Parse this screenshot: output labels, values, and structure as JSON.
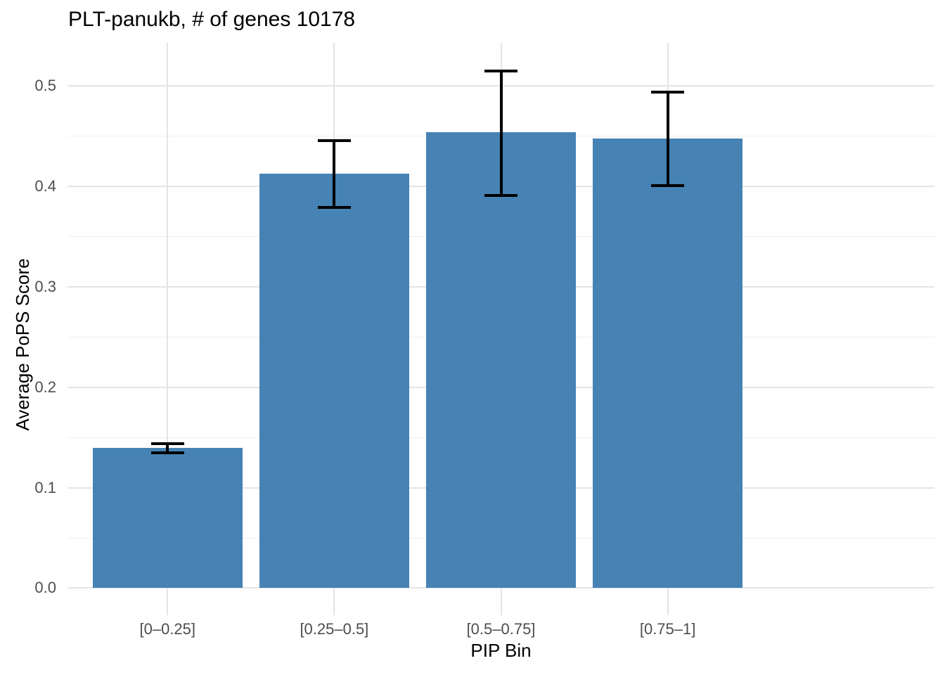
{
  "chart_data": {
    "type": "bar",
    "title": "PLT-panukb, # of genes 10178",
    "xlabel": "PIP Bin",
    "ylabel": "Average PoPS Score",
    "categories": [
      "[0–0.25]",
      "[0.25–0.5]",
      "[0.5–0.75]",
      "[0.75–1]"
    ],
    "values": [
      0.14,
      0.413,
      0.454,
      0.448
    ],
    "error_bars": [
      {
        "low": 0.135,
        "high": 0.144
      },
      {
        "low": 0.379,
        "high": 0.446
      },
      {
        "low": 0.391,
        "high": 0.515
      },
      {
        "low": 0.401,
        "high": 0.494
      }
    ],
    "y_ticks": [
      0.0,
      0.1,
      0.2,
      0.3,
      0.4,
      0.5
    ],
    "y_tick_labels": [
      "0.0",
      "0.1",
      "0.2",
      "0.3",
      "0.4",
      "0.5"
    ],
    "y_minor_ticks": [
      0.05,
      0.15,
      0.25,
      0.35,
      0.45
    ],
    "ylim": [
      -0.027,
      0.543
    ],
    "bar_color": "#4682B4",
    "error_color": "#000000",
    "grid_major_color": "#E4E4E4",
    "grid_minor_color": "#EFEFEF",
    "background_color": "#FFFFFF",
    "grid": true,
    "legend_position": "none"
  }
}
